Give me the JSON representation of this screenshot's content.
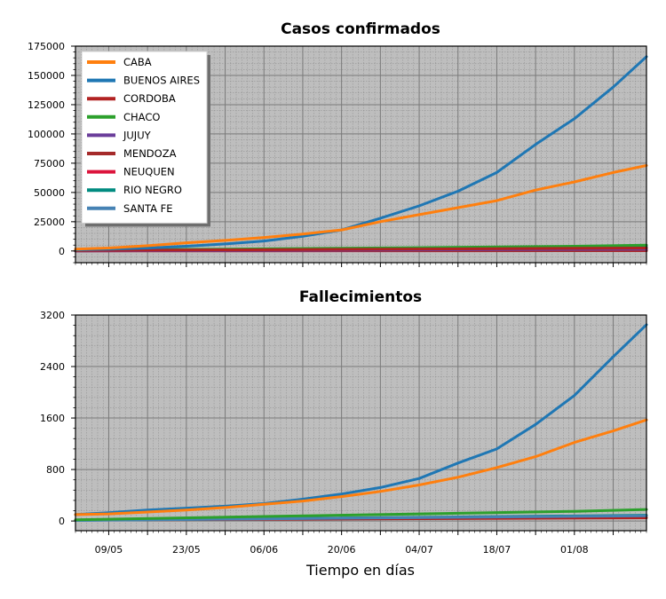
{
  "chart_data": [
    {
      "type": "line",
      "title": "Casos confirmados",
      "xlabel": "",
      "ylabel": "",
      "ylim": [
        -10000,
        175000
      ],
      "yticks": [
        0,
        25000,
        50000,
        75000,
        100000,
        125000,
        150000,
        175000
      ],
      "xticks": [
        "09/05",
        "23/05",
        "06/06",
        "20/06",
        "04/07",
        "18/07",
        "01/08"
      ],
      "x_range": [
        "03/05",
        "14/08"
      ],
      "grid": true,
      "legend_position": "top-left",
      "series": [
        {
          "name": "CABA",
          "color": "#ff7f0e",
          "x": [
            "03/05",
            "09/05",
            "16/05",
            "23/05",
            "30/05",
            "06/06",
            "13/06",
            "20/06",
            "27/06",
            "04/07",
            "11/07",
            "18/07",
            "25/07",
            "01/08",
            "08/08",
            "14/08"
          ],
          "values": [
            1500,
            2500,
            4500,
            7000,
            9000,
            11500,
            14500,
            18000,
            25000,
            31000,
            37000,
            43000,
            52000,
            59000,
            67000,
            73000
          ]
        },
        {
          "name": "BUENOS AIRES",
          "color": "#1f77b4",
          "x": [
            "03/05",
            "09/05",
            "16/05",
            "23/05",
            "30/05",
            "06/06",
            "13/06",
            "20/06",
            "27/06",
            "04/07",
            "11/07",
            "18/07",
            "25/07",
            "01/08",
            "08/08",
            "14/08"
          ],
          "values": [
            1000,
            1500,
            2500,
            4000,
            6000,
            8500,
            12500,
            18000,
            28000,
            38500,
            51000,
            67000,
            91000,
            113000,
            140000,
            166000
          ]
        },
        {
          "name": "CORDOBA",
          "color": "#b22222",
          "x": [
            "03/05",
            "14/08"
          ],
          "values": [
            400,
            2500
          ]
        },
        {
          "name": "CHACO",
          "color": "#2ca02c",
          "x": [
            "03/05",
            "09/05",
            "06/06",
            "04/07",
            "01/08",
            "14/08"
          ],
          "values": [
            500,
            900,
            1800,
            2800,
            4000,
            5000
          ]
        },
        {
          "name": "JUJUY",
          "color": "#6a3d9a",
          "x": [
            "03/05",
            "14/08"
          ],
          "values": [
            100,
            1500
          ]
        },
        {
          "name": "MENDOZA",
          "color": "#a52a2a",
          "x": [
            "03/05",
            "14/08"
          ],
          "values": [
            100,
            300
          ]
        },
        {
          "name": "NEUQUEN",
          "color": "#dc143c",
          "x": [
            "03/05",
            "14/08"
          ],
          "values": [
            100,
            200
          ]
        },
        {
          "name": "RIO NEGRO",
          "color": "#008b80",
          "x": [
            "03/05",
            "14/08"
          ],
          "values": [
            300,
            3500
          ]
        },
        {
          "name": "SANTA FE",
          "color": "#4682b4",
          "x": [
            "03/05",
            "14/08"
          ],
          "values": [
            250,
            2500
          ]
        }
      ]
    },
    {
      "type": "line",
      "title": "Fallecimientos",
      "xlabel": "Tiempo en días",
      "ylabel": "",
      "ylim": [
        -150,
        3200
      ],
      "yticks": [
        0,
        800,
        1600,
        2400,
        3200
      ],
      "xticks": [
        "09/05",
        "23/05",
        "06/06",
        "20/06",
        "04/07",
        "18/07",
        "01/08"
      ],
      "x_range": [
        "03/05",
        "14/08"
      ],
      "grid": true,
      "series": [
        {
          "color": "#ff7f0e",
          "x": [
            "03/05",
            "09/05",
            "16/05",
            "23/05",
            "30/05",
            "06/06",
            "13/06",
            "20/06",
            "27/06",
            "04/07",
            "11/07",
            "18/07",
            "25/07",
            "01/08",
            "08/08",
            "14/08"
          ],
          "values": [
            100,
            110,
            140,
            170,
            210,
            260,
            310,
            380,
            460,
            560,
            680,
            830,
            1000,
            1220,
            1400,
            1570
          ]
        },
        {
          "color": "#1f77b4",
          "x": [
            "03/05",
            "09/05",
            "16/05",
            "23/05",
            "30/05",
            "06/06",
            "13/06",
            "20/06",
            "27/06",
            "04/07",
            "11/07",
            "18/07",
            "25/07",
            "01/08",
            "08/08",
            "14/08"
          ],
          "values": [
            100,
            130,
            170,
            200,
            230,
            270,
            340,
            420,
            520,
            660,
            900,
            1120,
            1500,
            1950,
            2550,
            3050
          ]
        },
        {
          "color": "#2ca02c",
          "x": [
            "03/05",
            "06/06",
            "04/07",
            "01/08",
            "14/08"
          ],
          "values": [
            20,
            70,
            110,
            150,
            180
          ]
        },
        {
          "color": "#4682b4",
          "x": [
            "03/05",
            "14/08"
          ],
          "values": [
            10,
            80
          ]
        },
        {
          "color": "#008b80",
          "x": [
            "03/05",
            "14/08"
          ],
          "values": [
            10,
            90
          ]
        },
        {
          "color": "#b22222",
          "x": [
            "03/05",
            "14/08"
          ],
          "values": [
            15,
            50
          ]
        }
      ]
    }
  ]
}
